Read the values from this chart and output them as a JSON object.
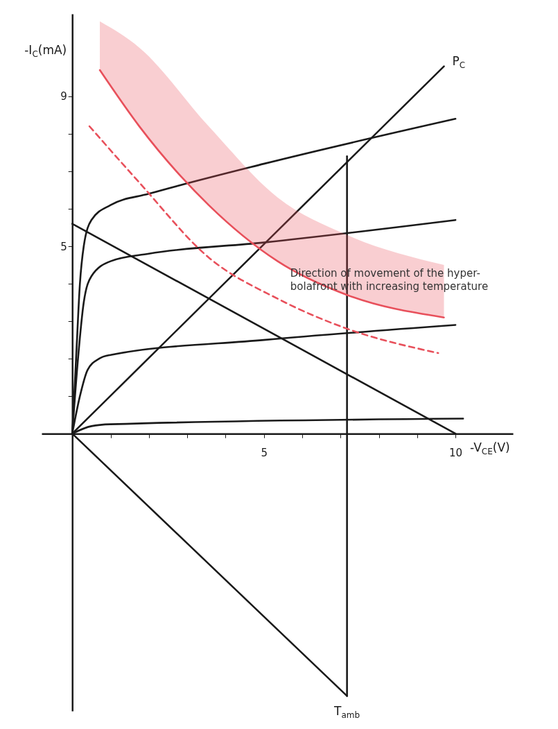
{
  "chart_data": {
    "type": "line",
    "xlabel": "-V$_{CE}$(V)",
    "ylabel": "-I$_{C}$(mA)",
    "xlim": [
      -0.8,
      11.5
    ],
    "ylim": [
      -7.4,
      11.2
    ],
    "xticks": [
      {
        "value": 1,
        "label": null
      },
      {
        "value": 2,
        "label": null
      },
      {
        "value": 3,
        "label": null
      },
      {
        "value": 4,
        "label": null
      },
      5,
      {
        "value": 6,
        "label": null
      },
      {
        "value": 7,
        "label": null
      },
      {
        "value": 8,
        "label": null
      },
      {
        "value": 9,
        "label": null
      },
      10
    ],
    "yticks": [
      {
        "value": 1,
        "label": null
      },
      {
        "value": 2,
        "label": null
      },
      {
        "value": 3,
        "label": null
      },
      {
        "value": 4,
        "label": null
      },
      5,
      {
        "value": 6,
        "label": null
      },
      {
        "value": 7,
        "label": null
      },
      {
        "value": 8,
        "label": null
      },
      9
    ],
    "grid": false,
    "marker": "none",
    "series": [
      {
        "color": "#1a1a1a",
        "x": [
          0,
          0.1,
          0.2,
          0.3,
          0.5,
          1,
          2,
          5,
          10
        ],
        "values": [
          0,
          2,
          4,
          5,
          5.7,
          6.1,
          6.4,
          7.2,
          8.4
        ]
      },
      {
        "color": "#1a1a1a",
        "x": [
          0,
          0.15,
          0.3,
          0.5,
          1,
          2,
          5,
          10
        ],
        "values": [
          0,
          2,
          3.5,
          4.2,
          4.6,
          4.8,
          5.1,
          5.7
        ]
      },
      {
        "color": "#1a1a1a",
        "x": [
          0,
          0.2,
          0.4,
          0.7,
          1,
          5,
          10
        ],
        "values": [
          0,
          1,
          1.7,
          2.0,
          2.1,
          2.5,
          2.9
        ]
      },
      {
        "color": "#1a1a1a",
        "x": [
          0,
          0.5,
          1,
          10.2
        ],
        "values": [
          0,
          0.2,
          0.25,
          0.4
        ]
      },
      {
        "color": "#1a1a1a",
        "x": [
          0,
          10
        ],
        "values": [
          5.6,
          0
        ]
      },
      {
        "name": "P$_{C}$",
        "color": "#1a1a1a",
        "x": [
          0,
          9.7
        ],
        "values": [
          0,
          9.8
        ]
      },
      {
        "name": "T$_{amb}$",
        "color": "#1a1a1a",
        "x": [
          0,
          7.17
        ],
        "values": [
          0,
          -7.0
        ]
      },
      {
        "color": "#1a1a1a",
        "x": [
          7.17,
          7.17
        ],
        "values": [
          -7.0,
          7.4
        ]
      },
      {
        "color": "#e8505b",
        "x": [
          0.72,
          1.75,
          3.56,
          5.36,
          7.17,
          9.7
        ],
        "values": [
          9.7,
          8.2,
          6.1,
          4.6,
          3.7,
          3.1
        ],
        "lower": [
          9.7,
          8.2,
          6.1,
          4.6,
          3.7,
          3.1
        ],
        "upper": [
          11.0,
          10.3,
          8.2,
          6.3,
          5.3,
          4.5
        ]
      },
      {
        "color": "#e8505b",
        "line_style": "dashed",
        "x": [
          0.45,
          1.75,
          3.56,
          5.36,
          7.17,
          9.55
        ],
        "values": [
          8.2,
          6.7,
          4.7,
          3.6,
          2.8,
          2.15
        ]
      }
    ],
    "annotations": [
      {
        "text": "Direction of movement of the hyper-\nbolafront with increasing temperature",
        "x": 5.69,
        "y": 4.4
      }
    ]
  }
}
